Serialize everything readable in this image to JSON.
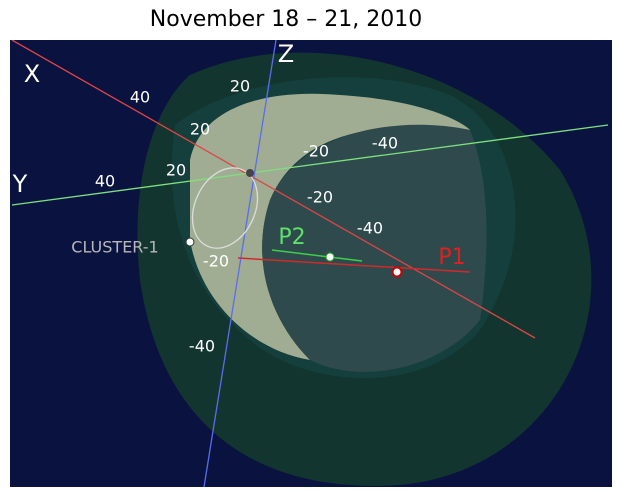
{
  "title": "November 18 – 21, 2010",
  "axes": {
    "x": "X",
    "y": "Y",
    "z": "Z"
  },
  "x_ticks": [
    "40",
    "20",
    "-20",
    "-40"
  ],
  "y_ticks": [
    "40",
    "20",
    "-20",
    "-40"
  ],
  "z_ticks": [
    "20",
    "-20",
    "-40"
  ],
  "objects": {
    "cluster": "CLUSTER-1",
    "p2": "P2",
    "p1": "P1"
  }
}
